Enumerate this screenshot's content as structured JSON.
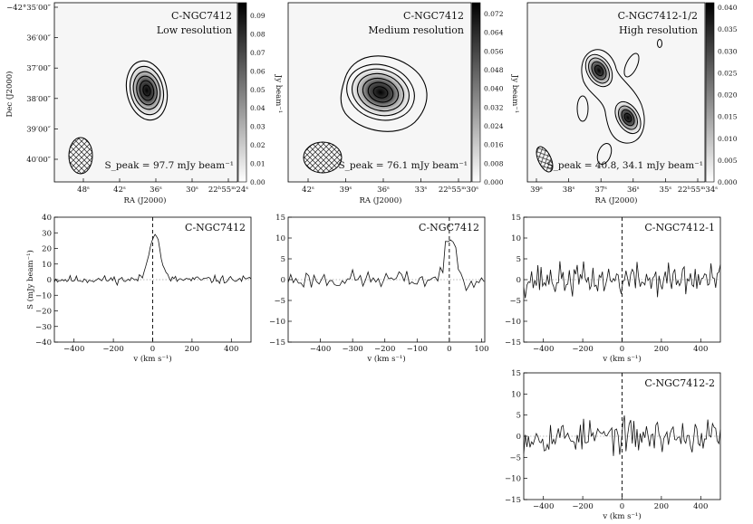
{
  "figure": {
    "dec_label": "Dec (J2000)",
    "colorbar_unit": "Jy beam⁻¹"
  },
  "chart_data": [
    {
      "type": "heatmap",
      "panel": "map-low",
      "title": "C-NGC7412",
      "subtitle": "Low resolution",
      "annotation": "S_peak = 97.7 mJy beam⁻¹",
      "xlabel": "RA (J2000)",
      "ylabel": "Dec (J2000)",
      "x_ticks": [
        "48ˢ",
        "42ˢ",
        "36ˢ",
        "30ˢ",
        "22ʰ55ᵐ24ˢ"
      ],
      "y_ticks": [
        "−42°35′00″",
        "36′00″",
        "37′00″",
        "38′00″",
        "39′00″",
        "40′00″"
      ],
      "colorbar_ticks": [
        "0.09",
        "0.08",
        "0.07",
        "0.06",
        "0.05",
        "0.04",
        "0.03",
        "0.02",
        "0.01",
        "0.00"
      ],
      "colorbar_range": [
        0.0,
        0.097
      ],
      "colorbar_label": "Jy beam⁻¹",
      "sources": [
        {
          "peak": 0.0977
        }
      ],
      "beam": "ellipse, cross-hatched, lower-left"
    },
    {
      "type": "heatmap",
      "panel": "map-medium",
      "title": "C-NGC7412",
      "subtitle": "Medium resolution",
      "annotation": "S_peak = 76.1 mJy beam⁻¹",
      "xlabel": "RA (J2000)",
      "x_ticks": [
        "42ˢ",
        "39ˢ",
        "36ˢ",
        "33ˢ",
        "22ʰ55ᵐ30ˢ"
      ],
      "colorbar_ticks": [
        "0.072",
        "0.064",
        "0.056",
        "0.048",
        "0.040",
        "0.032",
        "0.024",
        "0.016",
        "0.008",
        "0.000"
      ],
      "colorbar_range": [
        0.0,
        0.076
      ],
      "colorbar_label": "Jy beam⁻¹",
      "sources": [
        {
          "peak": 0.0761
        }
      ],
      "beam": "ellipse, cross-hatched, lower-left"
    },
    {
      "type": "heatmap",
      "panel": "map-high",
      "title": "C-NGC7412-1/2",
      "subtitle": "High resolution",
      "annotation": "S_peak = 40.8, 34.1 mJy beam⁻¹",
      "xlabel": "RA (J2000)",
      "x_ticks": [
        "39ˢ",
        "38ˢ",
        "37ˢ",
        "36ˢ",
        "35ˢ",
        "22ʰ55ᵐ34ˢ"
      ],
      "colorbar_ticks": [
        "0.040",
        "0.035",
        "0.030",
        "0.025",
        "0.020",
        "0.015",
        "0.010",
        "0.005",
        "0.000"
      ],
      "colorbar_range": [
        0.0,
        0.041
      ],
      "colorbar_label": "Jy beam⁻¹",
      "sources": [
        {
          "peak": 0.0408
        },
        {
          "peak": 0.0341
        }
      ],
      "beam": "ellipse, cross-hatched, lower-left"
    },
    {
      "type": "line",
      "panel": "spec-low",
      "title": "C-NGC7412",
      "xlabel": "v (km s⁻¹)",
      "ylabel": "S (mJy beam⁻¹)",
      "xlim": [
        -500,
        500
      ],
      "ylim": [
        -40,
        40
      ],
      "x_ticks": [
        -400,
        -200,
        0,
        200,
        400
      ],
      "y_ticks": [
        -40,
        -30,
        -20,
        -10,
        0,
        10,
        20,
        30,
        40
      ],
      "vline_x": 0,
      "hline_y": 0,
      "line_profile": {
        "center": 10,
        "peak": 30,
        "width": 28,
        "noise": 1.8,
        "seed": 11
      },
      "x": [
        -480,
        -400,
        -300,
        -200,
        -100,
        -40,
        -20,
        0,
        10,
        20,
        40,
        100,
        200,
        300,
        400,
        480
      ],
      "y": [
        1,
        2,
        1,
        2,
        2,
        6,
        16,
        26,
        30,
        25,
        12,
        2,
        1,
        2,
        0,
        -1
      ]
    },
    {
      "type": "line",
      "panel": "spec-medium",
      "title": "C-NGC7412",
      "xlabel": "v (km s⁻¹)",
      "xlim": [
        -500,
        110
      ],
      "ylim": [
        -15,
        15
      ],
      "x_ticks": [
        -400,
        -300,
        -200,
        -100,
        0,
        100
      ],
      "x_tick_labels": [
        "−400",
        "−300",
        "−200",
        "−100",
        "0",
        "100"
      ],
      "y_ticks": [
        -15,
        -10,
        -5,
        0,
        5,
        10,
        15
      ],
      "vline_x": 0,
      "hline_y": 0,
      "line_profile": {
        "center": 5,
        "peak": 9.5,
        "width": 18,
        "noise": 1.6,
        "seed": 23
      },
      "x": [
        -490,
        -400,
        -300,
        -200,
        -100,
        -40,
        -20,
        0,
        10,
        20,
        40,
        100
      ],
      "y": [
        0,
        1,
        -1,
        1,
        0,
        2,
        5,
        9,
        10,
        7,
        2,
        0
      ]
    },
    {
      "type": "line",
      "panel": "spec-high-1",
      "title": "C-NGC7412-1",
      "xlabel": "v (km s⁻¹)",
      "xlim": [
        -500,
        500
      ],
      "ylim": [
        -15,
        15
      ],
      "x_ticks": [
        -400,
        -200,
        0,
        200,
        400
      ],
      "y_ticks": [
        -15,
        -10,
        -5,
        0,
        5,
        10,
        15
      ],
      "vline_x": 0,
      "hline_y": 0,
      "line_profile": {
        "center": 0,
        "peak": 0,
        "width": 10,
        "noise": 2.8,
        "seed": 37
      },
      "x": [
        -480,
        -400,
        -300,
        -200,
        -100,
        0,
        100,
        200,
        300,
        400,
        480
      ],
      "y": [
        0,
        2,
        -1,
        3,
        -2,
        4,
        -1,
        2,
        -2,
        1,
        0
      ]
    },
    {
      "type": "line",
      "panel": "spec-high-2",
      "title": "C-NGC7412-2",
      "xlabel": "v (km s⁻¹)",
      "xlim": [
        -500,
        500
      ],
      "ylim": [
        -15,
        15
      ],
      "x_ticks": [
        -400,
        -200,
        0,
        200,
        400
      ],
      "y_ticks": [
        -15,
        -10,
        -5,
        0,
        5,
        10,
        15
      ],
      "vline_x": 0,
      "hline_y": 0,
      "line_profile": {
        "center": 0,
        "peak": 0,
        "width": 10,
        "noise": 2.8,
        "seed": 53
      },
      "x": [
        -480,
        -400,
        -300,
        -200,
        -100,
        0,
        100,
        200,
        300,
        400,
        480
      ],
      "y": [
        1,
        -2,
        2,
        -1,
        3,
        4,
        -2,
        1,
        2,
        -1,
        0
      ]
    }
  ]
}
